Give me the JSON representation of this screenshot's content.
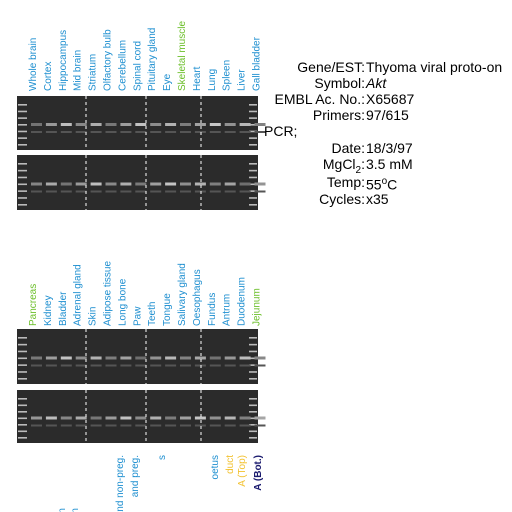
{
  "panel_top": {
    "lanes": [
      {
        "label": "Whole brain",
        "color": "#1e8fd0"
      },
      {
        "label": "Cortex",
        "color": "#1e8fd0"
      },
      {
        "label": "Hippocampus",
        "color": "#1e8fd0"
      },
      {
        "label": "Mid brain",
        "color": "#1e8fd0"
      },
      {
        "label": "Striatum",
        "color": "#1e8fd0"
      },
      {
        "label": "Olfactory bulb",
        "color": "#1e8fd0"
      },
      {
        "label": "Cerebellum",
        "color": "#1e8fd0"
      },
      {
        "label": "Spinal cord",
        "color": "#1e8fd0"
      },
      {
        "label": "Pituitary gland",
        "color": "#1e8fd0"
      },
      {
        "label": "Eye",
        "color": "#1e8fd0"
      },
      {
        "label": "Skeletal muscle",
        "color": "#6cbf2a"
      },
      {
        "label": "Heart",
        "color": "#1e8fd0"
      },
      {
        "label": "Lung",
        "color": "#1e8fd0"
      },
      {
        "label": "Spleen",
        "color": "#1e8fd0"
      },
      {
        "label": "Liver",
        "color": "#1e8fd0"
      },
      {
        "label": "Gall bladder",
        "color": "#1e8fd0"
      }
    ]
  },
  "panel_bottom": {
    "lanes": [
      {
        "label": "Pancreas",
        "color": "#6cbf2a"
      },
      {
        "label": "Kidney",
        "color": "#1e8fd0"
      },
      {
        "label": "Bladder",
        "color": "#1e8fd0"
      },
      {
        "label": "Adrenal gland",
        "color": "#1e8fd0"
      },
      {
        "label": "Skin",
        "color": "#1e8fd0"
      },
      {
        "label": "Adipose tissue",
        "color": "#1e8fd0"
      },
      {
        "label": "Long bone",
        "color": "#1e8fd0"
      },
      {
        "label": "Paw",
        "color": "#1e8fd0"
      },
      {
        "label": "Teeth",
        "color": "#1e8fd0"
      },
      {
        "label": "Tongue",
        "color": "#1e8fd0"
      },
      {
        "label": "Salivary gland",
        "color": "#1e8fd0"
      },
      {
        "label": "Oesophagus",
        "color": "#1e8fd0"
      },
      {
        "label": "Fundus",
        "color": "#1e8fd0"
      },
      {
        "label": "Antrum",
        "color": "#1e8fd0"
      },
      {
        "label": "Duodenum",
        "color": "#1e8fd0"
      },
      {
        "label": "Jejunum",
        "color": "#6cbf2a"
      }
    ]
  },
  "panel_cut": {
    "lanes": [
      {
        "label": "n",
        "color": "#1e8fd0"
      },
      {
        "label": "on",
        "color": "#1e8fd0"
      },
      {
        "label": "and non-preg.",
        "color": "#1e8fd0"
      },
      {
        "label": "and preg.",
        "color": "#1e8fd0"
      },
      {
        "label": "s",
        "color": "#1e8fd0"
      },
      {
        "label": "oetus",
        "color": "#1e8fd0"
      },
      {
        "label": "duct",
        "color": "#f2c12e"
      },
      {
        "label": "A (Top)",
        "color": "#f2c12e"
      },
      {
        "label": "A (Bot.)",
        "color": "#1a1a6e"
      }
    ]
  },
  "info": {
    "gene": {
      "label": "Gene/EST:",
      "value": "Thyoma viral proto-on"
    },
    "symbol": {
      "label": "Symbol:",
      "value": "Akt"
    },
    "embl": {
      "label": "EMBL Ac. No.:",
      "value": "X65687"
    },
    "primers": {
      "label": "Primers:",
      "value": "97/615"
    },
    "pcr": "PCR;",
    "date": {
      "label": "Date:",
      "value": "18/3/97"
    },
    "mgcl": {
      "label": "MgCl",
      "sub": "2",
      "colon": ":",
      "value": "3.5 mM"
    },
    "temp": {
      "label": "Temp:",
      "value": "55",
      "sup": "o",
      "unit": "C"
    },
    "cycles": {
      "label": "Cycles:",
      "value": "x35"
    }
  }
}
